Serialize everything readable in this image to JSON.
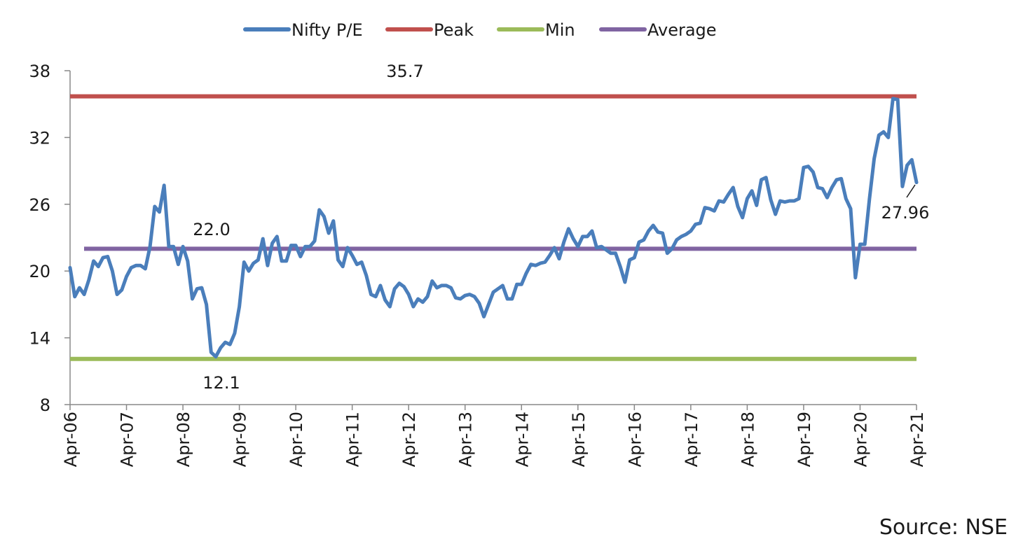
{
  "chart_data": {
    "type": "line",
    "title": "",
    "xlabel": "",
    "ylabel": "",
    "ylim": [
      8,
      38
    ],
    "yticks": [
      8,
      14,
      20,
      26,
      32,
      38
    ],
    "xticks": [
      "Apr-06",
      "Apr-07",
      "Apr-08",
      "Apr-09",
      "Apr-10",
      "Apr-11",
      "Apr-12",
      "Apr-13",
      "Apr-14",
      "Apr-15",
      "Apr-16",
      "Apr-17",
      "Apr-18",
      "Apr-19",
      "Apr-20",
      "Apr-21"
    ],
    "legend_position": "top-center",
    "grid": false,
    "series": [
      {
        "name": "Nifty P/E",
        "color": "#4a7ebb",
        "x": [
          0.0,
          0.083,
          0.167,
          0.25,
          0.333,
          0.417,
          0.5,
          0.583,
          0.667,
          0.75,
          0.833,
          0.917,
          1.0,
          1.083,
          1.167,
          1.25,
          1.333,
          1.417,
          1.5,
          1.583,
          1.667,
          1.75,
          1.833,
          1.917,
          2.0,
          2.083,
          2.167,
          2.25,
          2.333,
          2.417,
          2.5,
          2.583,
          2.667,
          2.75,
          2.833,
          2.917,
          3.0,
          3.083,
          3.167,
          3.25,
          3.333,
          3.417,
          3.5,
          3.583,
          3.667,
          3.75,
          3.833,
          3.917,
          4.0,
          4.083,
          4.167,
          4.25,
          4.333,
          4.417,
          4.5,
          4.583,
          4.667,
          4.75,
          4.833,
          4.917,
          5.0,
          5.083,
          5.167,
          5.25,
          5.333,
          5.417,
          5.5,
          5.583,
          5.667,
          5.75,
          5.833,
          5.917,
          6.0,
          6.083,
          6.167,
          6.25,
          6.333,
          6.417,
          6.5,
          6.583,
          6.667,
          6.75,
          6.833,
          6.917,
          7.0,
          7.083,
          7.167,
          7.25,
          7.333,
          7.417,
          7.5,
          7.583,
          7.667,
          7.75,
          7.833,
          7.917,
          8.0,
          8.083,
          8.167,
          8.25,
          8.333,
          8.417,
          8.5,
          8.583,
          8.667,
          8.75,
          8.833,
          8.917,
          9.0,
          9.083,
          9.167,
          9.25,
          9.333,
          9.417,
          9.5,
          9.583,
          9.667,
          9.75,
          9.833,
          9.917,
          10.0,
          10.083,
          10.167,
          10.25,
          10.333,
          10.417,
          10.5,
          10.583,
          10.667,
          10.75,
          10.833,
          10.917,
          11.0,
          11.083,
          11.167,
          11.25,
          11.333,
          11.417,
          11.5,
          11.583,
          11.667,
          11.75,
          11.833,
          11.917,
          12.0,
          12.083,
          12.167,
          12.25,
          12.333,
          12.417,
          12.5,
          12.583,
          12.667,
          12.75,
          12.833,
          12.917,
          13.0,
          13.083,
          13.167,
          13.25,
          13.333,
          13.417,
          13.5,
          13.583,
          13.667,
          13.75,
          13.833,
          13.917,
          14.0,
          14.083,
          14.167,
          14.25,
          14.333,
          14.417,
          14.5,
          14.583,
          14.667,
          14.75,
          14.833,
          14.917,
          15.0
        ],
        "values": [
          20.3,
          17.7,
          18.5,
          17.9,
          19.2,
          20.9,
          20.4,
          21.2,
          21.3,
          20.0,
          17.9,
          18.3,
          19.5,
          20.3,
          20.5,
          20.5,
          20.2,
          22.2,
          25.8,
          25.3,
          27.7,
          22.2,
          22.2,
          20.6,
          22.2,
          20.9,
          17.5,
          18.4,
          18.5,
          17.0,
          12.7,
          12.3,
          13.1,
          13.6,
          13.4,
          14.4,
          16.8,
          20.8,
          20.0,
          20.7,
          21.0,
          22.9,
          20.5,
          22.5,
          23.1,
          20.9,
          20.9,
          22.3,
          22.3,
          21.3,
          22.2,
          22.2,
          22.7,
          25.5,
          24.9,
          23.4,
          24.5,
          21.0,
          20.4,
          22.1,
          21.4,
          20.6,
          20.8,
          19.6,
          17.9,
          17.7,
          18.7,
          17.4,
          16.8,
          18.4,
          18.9,
          18.6,
          17.9,
          16.8,
          17.5,
          17.2,
          17.7,
          19.1,
          18.5,
          18.7,
          18.7,
          18.5,
          17.6,
          17.5,
          17.8,
          17.9,
          17.7,
          17.1,
          15.9,
          17.0,
          18.1,
          18.4,
          18.7,
          17.5,
          17.5,
          18.8,
          18.8,
          19.8,
          20.6,
          20.5,
          20.7,
          20.8,
          21.4,
          22.1,
          21.1,
          22.6,
          23.8,
          22.9,
          22.2,
          23.1,
          23.1,
          23.6,
          22.1,
          22.2,
          21.9,
          21.6,
          21.6,
          20.4,
          19.0,
          21.0,
          21.2,
          22.6,
          22.8,
          23.6,
          24.1,
          23.5,
          23.4,
          21.6,
          22.0,
          22.8,
          23.1,
          23.3,
          23.6,
          24.2,
          24.3,
          25.7,
          25.6,
          25.4,
          26.3,
          26.2,
          26.9,
          27.5,
          25.8,
          24.8,
          26.5,
          27.2,
          25.9,
          28.2,
          28.4,
          26.4,
          25.1,
          26.3,
          26.2,
          26.3,
          26.3,
          26.5,
          29.3,
          29.4,
          28.9,
          27.5,
          27.4,
          26.6,
          27.5,
          28.2,
          28.3,
          26.5,
          25.6,
          19.4,
          22.4,
          22.4,
          26.5,
          30.1,
          32.2,
          32.5,
          32.0,
          35.5,
          35.4,
          27.6,
          29.5,
          30.0,
          27.96
        ]
      },
      {
        "name": "Peak",
        "color": "#c0504d",
        "value": 35.7
      },
      {
        "name": "Min",
        "color": "#9bbb59",
        "value": 12.1
      },
      {
        "name": "Average",
        "color": "#8064a2",
        "value": 22.0
      }
    ],
    "annotations": [
      {
        "text": "35.7"
      },
      {
        "text": "22.0"
      },
      {
        "text": "12.1"
      },
      {
        "text": "27.96"
      }
    ]
  },
  "source_text": "Source: NSE"
}
